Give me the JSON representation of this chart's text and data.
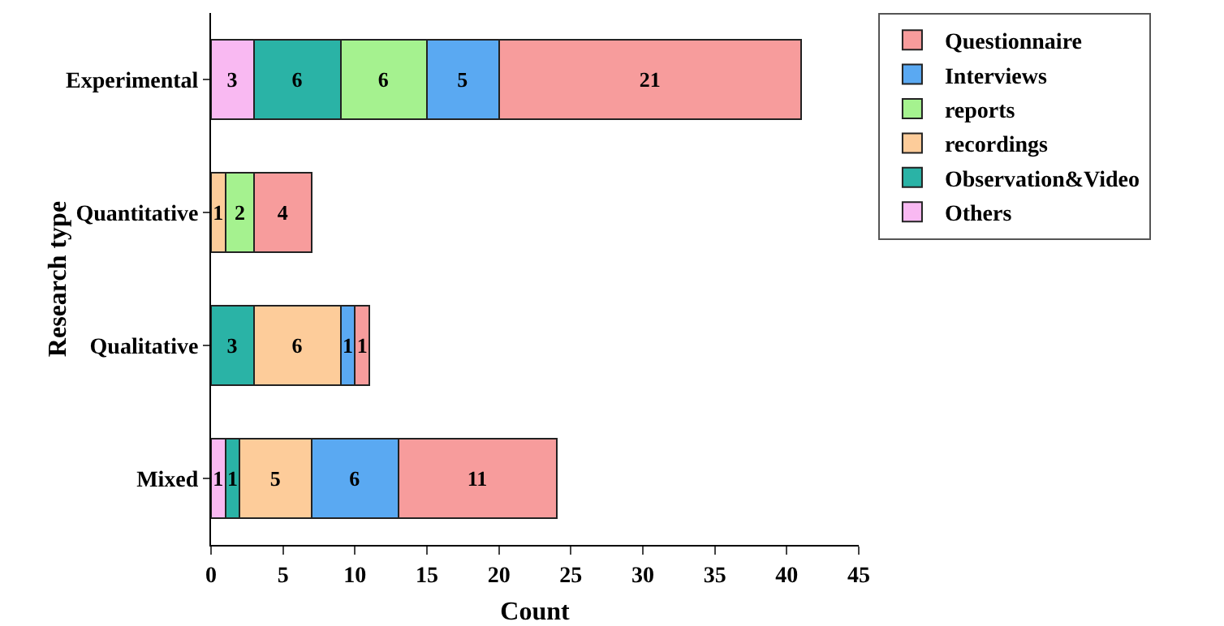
{
  "chart_data": {
    "type": "bar",
    "orientation": "horizontal",
    "stacked": true,
    "data_labels": true,
    "xlabel": "Count",
    "ylabel": "Research type",
    "categories": [
      "Experimental",
      "Quantitative",
      "Qualitative",
      "Mixed"
    ],
    "series": [
      {
        "name": "Others",
        "color": "#f9b9f2",
        "values": [
          3,
          null,
          null,
          1
        ]
      },
      {
        "name": "Observation&Video",
        "color": "#2ab3a6",
        "values": [
          6,
          null,
          3,
          1
        ]
      },
      {
        "name": "recordings",
        "color": "#fdcc9a",
        "values": [
          null,
          1,
          6,
          5
        ]
      },
      {
        "name": "reports",
        "color": "#a5f28f",
        "values": [
          6,
          2,
          null,
          null
        ]
      },
      {
        "name": "Interviews",
        "color": "#5aa9f2",
        "values": [
          5,
          null,
          1,
          6
        ]
      },
      {
        "name": "Questionnaire",
        "color": "#f79c9c",
        "values": [
          21,
          4,
          1,
          11
        ]
      }
    ],
    "xlim": [
      0,
      45
    ],
    "xticks": [
      0,
      5,
      10,
      15,
      20,
      25,
      30,
      35,
      40,
      45
    ],
    "legend": "top right",
    "grid": false
  }
}
